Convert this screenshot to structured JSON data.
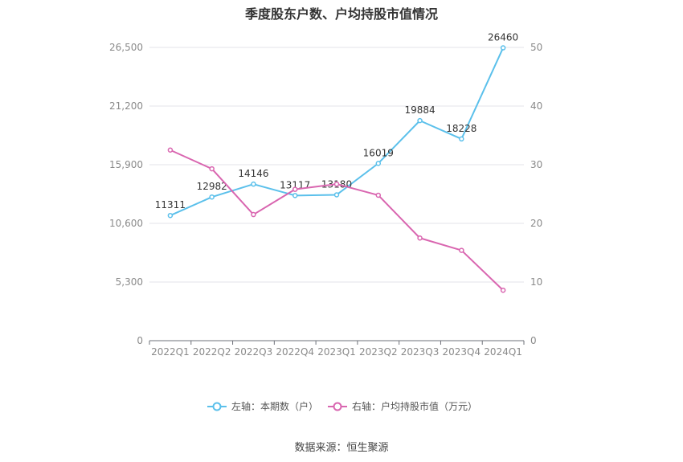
{
  "chart_data": {
    "type": "line",
    "title": "季度股东户数、户均持股市值情况",
    "categories": [
      "2022Q1",
      "2022Q2",
      "2022Q3",
      "2022Q4",
      "2023Q1",
      "2023Q2",
      "2023Q3",
      "2023Q4",
      "2024Q1"
    ],
    "series": [
      {
        "name": "左轴：本期数（户）",
        "axis": "left",
        "color": "#5bc0eb",
        "values": [
          11311,
          12982,
          14146,
          13117,
          13180,
          16019,
          19884,
          18228,
          26460
        ],
        "labels": [
          "11311",
          "12982",
          "14146",
          "13117",
          "13180",
          "16019",
          "19884",
          "18228",
          "26460"
        ]
      },
      {
        "name": "右轴：户均持股市值（万元）",
        "axis": "right",
        "color": "#d966b0",
        "values": [
          32.5,
          29.3,
          21.5,
          25.8,
          26.7,
          24.8,
          17.5,
          15.4,
          8.6
        ]
      }
    ],
    "left_axis": {
      "ylim": [
        0,
        26500
      ],
      "ticks": [
        0,
        5300,
        10600,
        15900,
        21200,
        26500
      ],
      "tick_labels": [
        "0",
        "5,300",
        "10,600",
        "15,900",
        "21,200",
        "26,500"
      ]
    },
    "right_axis": {
      "ylim": [
        0,
        50
      ],
      "ticks": [
        0,
        10,
        20,
        30,
        40,
        50
      ],
      "tick_labels": [
        "0",
        "10",
        "20",
        "30",
        "40",
        "50"
      ]
    },
    "grid": true,
    "legend": "bottom-center"
  },
  "source": "数据来源：恒生聚源"
}
